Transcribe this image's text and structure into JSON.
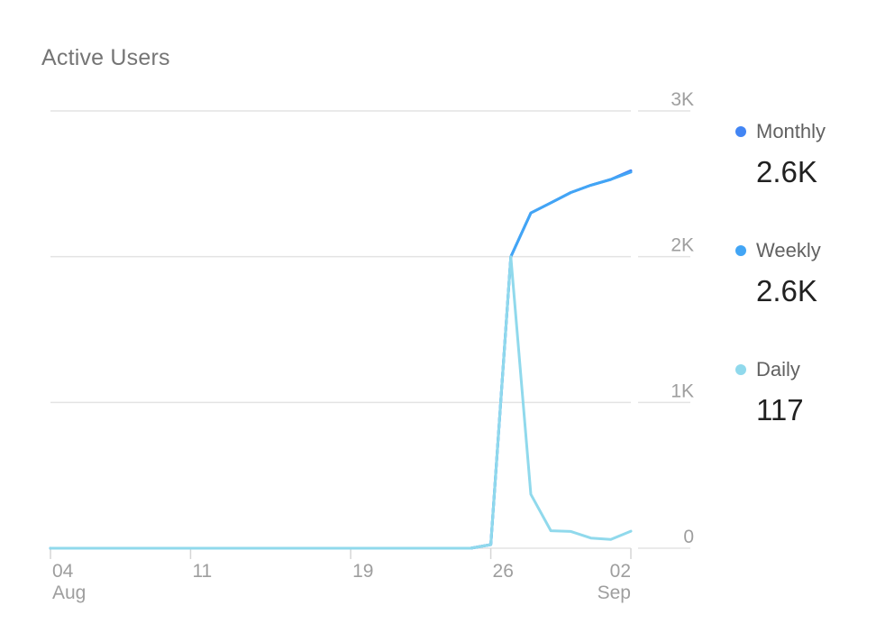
{
  "title": "Active Users",
  "chart_data": {
    "type": "line",
    "title": "Active Users",
    "x": [
      "2019-08-04",
      "2019-08-05",
      "2019-08-06",
      "2019-08-07",
      "2019-08-08",
      "2019-08-09",
      "2019-08-10",
      "2019-08-11",
      "2019-08-12",
      "2019-08-13",
      "2019-08-14",
      "2019-08-15",
      "2019-08-16",
      "2019-08-17",
      "2019-08-18",
      "2019-08-19",
      "2019-08-20",
      "2019-08-21",
      "2019-08-22",
      "2019-08-23",
      "2019-08-24",
      "2019-08-25",
      "2019-08-26",
      "2019-08-27",
      "2019-08-28",
      "2019-08-29",
      "2019-08-30",
      "2019-08-31",
      "2019-09-01",
      "2019-09-02"
    ],
    "x_ticks": [
      {
        "date": "2019-08-04",
        "label": "04",
        "sublabel": "Aug"
      },
      {
        "date": "2019-08-11",
        "label": "11",
        "sublabel": ""
      },
      {
        "date": "2019-08-19",
        "label": "19",
        "sublabel": ""
      },
      {
        "date": "2019-08-26",
        "label": "26",
        "sublabel": ""
      },
      {
        "date": "2019-09-02",
        "label": "02",
        "sublabel": "Sep"
      }
    ],
    "y_ticks": [
      {
        "value": 0,
        "label": "0"
      },
      {
        "value": 1000,
        "label": "1K"
      },
      {
        "value": 2000,
        "label": "2K"
      },
      {
        "value": 3000,
        "label": "3K"
      }
    ],
    "ylim": [
      0,
      3000
    ],
    "grid": true,
    "y_axis_side": "right",
    "legend_position": "right",
    "series": [
      {
        "name": "Monthly",
        "color": "#4285f4",
        "display_value": "2.6K",
        "values": [
          0,
          0,
          0,
          0,
          0,
          0,
          0,
          0,
          0,
          0,
          0,
          0,
          0,
          0,
          0,
          0,
          0,
          0,
          0,
          0,
          0,
          0,
          25,
          2000,
          2300,
          2370,
          2440,
          2490,
          2530,
          2590
        ]
      },
      {
        "name": "Weekly",
        "color": "#42a5f5",
        "display_value": "2.6K",
        "values": [
          0,
          0,
          0,
          0,
          0,
          0,
          0,
          0,
          0,
          0,
          0,
          0,
          0,
          0,
          0,
          0,
          0,
          0,
          0,
          0,
          0,
          0,
          25,
          2000,
          2300,
          2370,
          2440,
          2490,
          2530,
          2580
        ]
      },
      {
        "name": "Daily",
        "color": "#90d9ec",
        "display_value": "117",
        "values": [
          0,
          0,
          0,
          0,
          0,
          0,
          0,
          0,
          0,
          0,
          0,
          0,
          0,
          0,
          0,
          0,
          0,
          0,
          0,
          0,
          0,
          0,
          25,
          2000,
          370,
          120,
          115,
          70,
          60,
          117
        ]
      }
    ]
  }
}
